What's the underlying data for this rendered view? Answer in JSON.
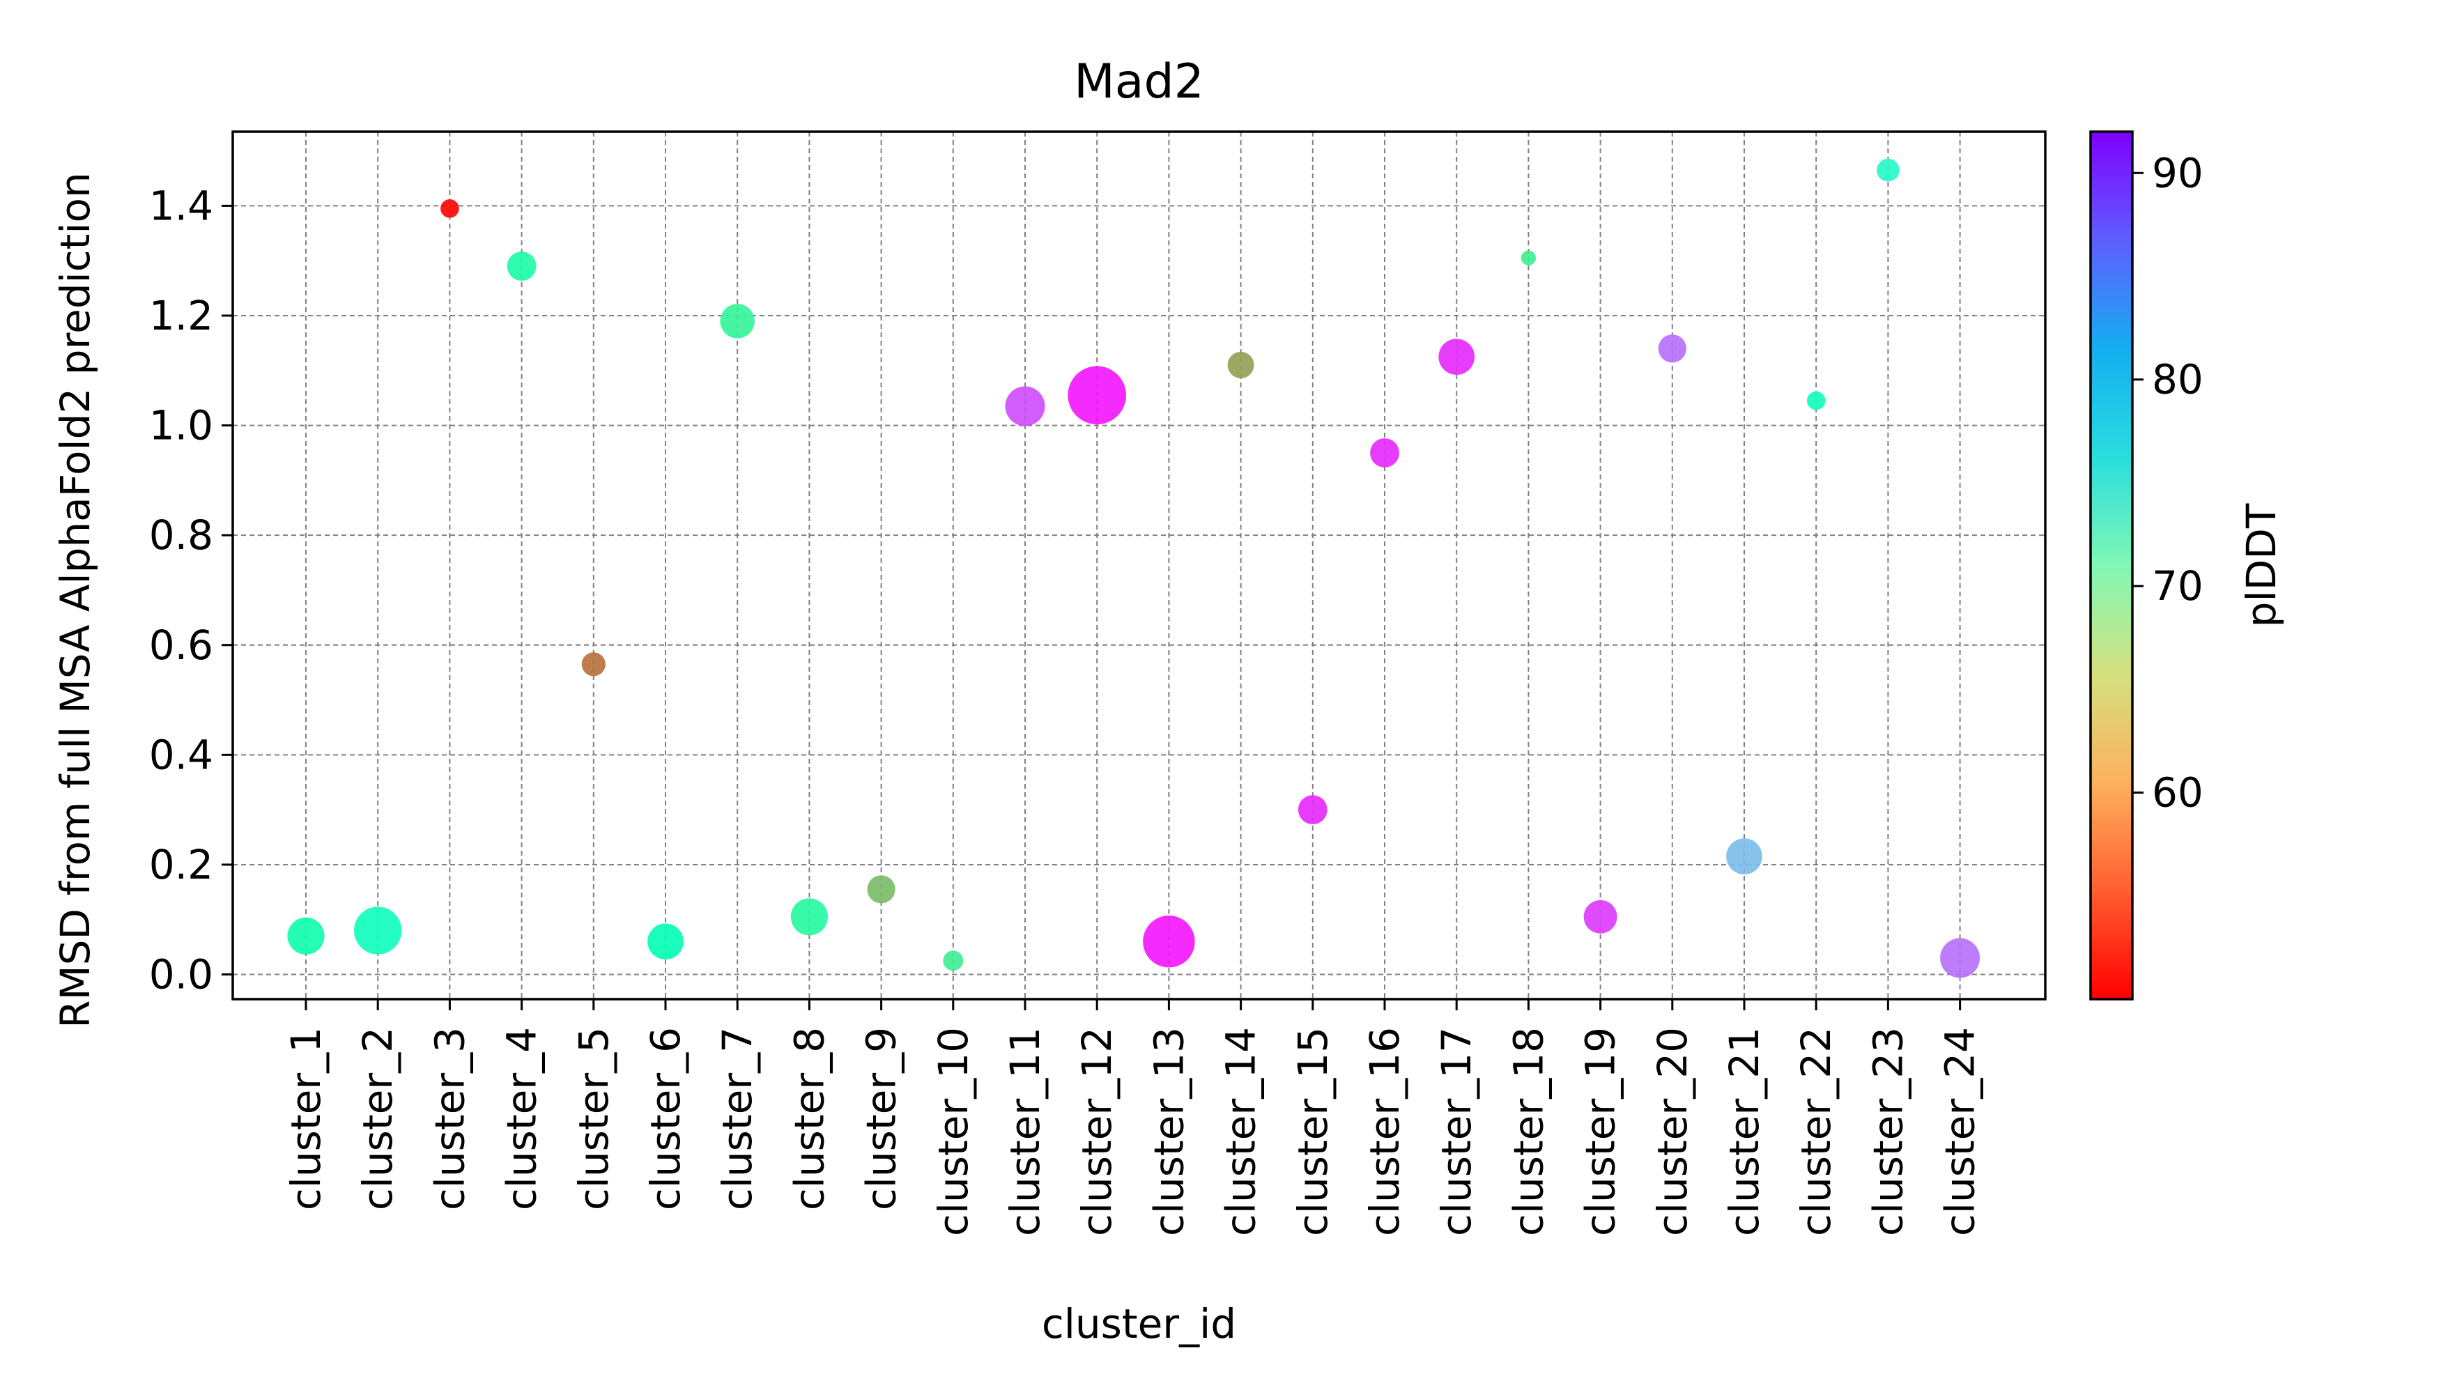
{
  "chart_data": {
    "type": "scatter",
    "title": "Mad2",
    "xlabel": "cluster_id",
    "ylabel": "RMSD from full MSA AlphaFold2 prediction",
    "colorbar_label": "plDDT",
    "categories": [
      "cluster_1",
      "cluster_2",
      "cluster_3",
      "cluster_4",
      "cluster_5",
      "cluster_6",
      "cluster_7",
      "cluster_8",
      "cluster_9",
      "cluster_10",
      "cluster_11",
      "cluster_12",
      "cluster_13",
      "cluster_14",
      "cluster_15",
      "cluster_16",
      "cluster_17",
      "cluster_18",
      "cluster_19",
      "cluster_20",
      "cluster_21",
      "cluster_22",
      "cluster_23",
      "cluster_24"
    ],
    "y": [
      0.07,
      0.08,
      1.395,
      1.29,
      0.565,
      0.06,
      1.19,
      0.105,
      0.155,
      0.025,
      1.035,
      1.055,
      0.06,
      1.11,
      0.3,
      0.95,
      1.125,
      1.305,
      0.105,
      1.14,
      0.215,
      1.045,
      1.465,
      0.03
    ],
    "plddt": [
      70,
      72,
      50,
      69,
      56,
      71,
      67,
      68,
      61,
      66,
      88,
      91,
      91,
      59,
      90,
      90,
      90,
      66,
      89,
      86,
      81,
      72,
      74,
      86
    ],
    "marker_size_rel": [
      0.7,
      0.9,
      0.35,
      0.55,
      0.45,
      0.68,
      0.65,
      0.7,
      0.53,
      0.38,
      0.75,
      1.1,
      0.98,
      0.5,
      0.55,
      0.55,
      0.68,
      0.28,
      0.63,
      0.53,
      0.68,
      0.35,
      0.43,
      0.75
    ],
    "ylim": [
      -0.045,
      1.535
    ],
    "yticks": [
      0.0,
      0.2,
      0.4,
      0.6,
      0.8,
      1.0,
      1.2,
      1.4
    ],
    "ytick_labels": [
      "0.0",
      "0.2",
      "0.4",
      "0.6",
      "0.8",
      "1.0",
      "1.2",
      "1.4"
    ],
    "colorbar_range": [
      50,
      92
    ],
    "colorbar_ticks": [
      60,
      70,
      80,
      90
    ],
    "colorbar_tick_labels": [
      "60",
      "70",
      "80",
      "90"
    ],
    "colormap": "rainbow",
    "grid": true,
    "grid_color": "#808080",
    "marker_alpha": 0.9
  }
}
